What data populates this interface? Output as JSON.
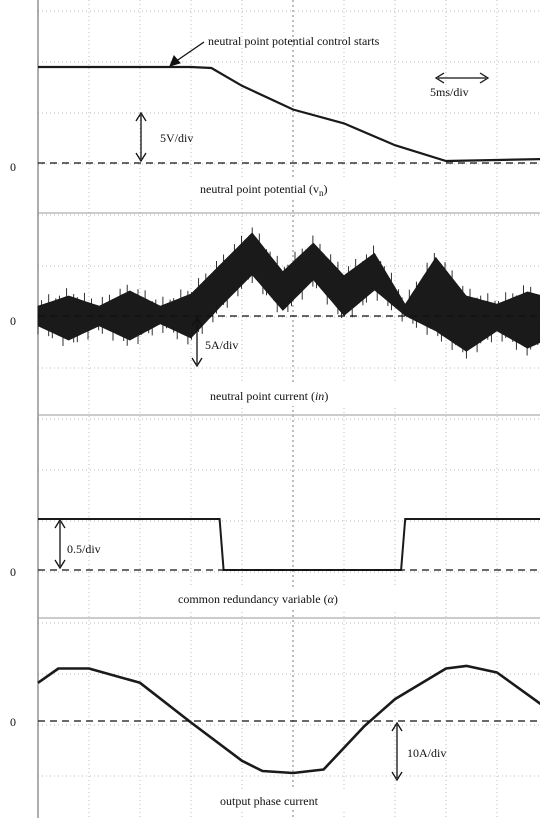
{
  "colors": {
    "trace": "#1a1a1a",
    "grid": "#bdbdbd",
    "background": "#ffffff"
  },
  "annotations": {
    "control_start": "neutral point potential control starts",
    "time_div": "5ms/div"
  },
  "scales": {
    "potential": "5V/div",
    "current": "5A/div",
    "alpha": "0.5/div",
    "phase": "10A/div"
  },
  "zero_label": "0",
  "chart_data": {
    "type": "line",
    "title": "",
    "x_unit": "ms",
    "x_per_division": 5,
    "x_divisions": 10,
    "grid": true,
    "panels": [
      {
        "name": "neutral point potential",
        "subscript": "n",
        "label": "neutral point potential (v",
        "scale": "5V/div",
        "unit": "V",
        "zero_label": "0",
        "series": [
          {
            "x": [
              0,
              5,
              10,
              15,
              17,
              20,
              25,
              30,
              35,
              40,
              45,
              50
            ],
            "y": [
              9.7,
              9.7,
              9.7,
              9.7,
              9.6,
              7.8,
              5.4,
              4.0,
              1.8,
              0.2,
              0.3,
              0.4
            ]
          }
        ]
      },
      {
        "name": "neutral point current",
        "label": "neutral point current (",
        "label_italic": "in",
        "label_end": ")",
        "scale": "5A/div",
        "unit": "A",
        "zero_label": "0",
        "envelope": "upper and lower bounds of the dense switching waveform",
        "series": [
          {
            "name": "upper",
            "x": [
              0,
              3,
              6,
              9,
              12,
              15,
              18,
              21,
              24,
              27,
              30,
              33,
              36,
              39,
              42,
              45,
              48,
              51
            ],
            "y": [
              1.0,
              2.0,
              1.0,
              2.5,
              1.0,
              2.2,
              5.2,
              8.2,
              4.4,
              7.2,
              4.0,
              6.2,
              1.2,
              5.8,
              2.0,
              1.2,
              2.4,
              1.6
            ]
          },
          {
            "name": "lower",
            "x": [
              0,
              3,
              6,
              9,
              12,
              15,
              18,
              21,
              24,
              27,
              30,
              33,
              36,
              39,
              42,
              45,
              48,
              51
            ],
            "y": [
              -1.0,
              -2.4,
              -1.0,
              -2.4,
              -0.8,
              -2.2,
              1.0,
              4.0,
              0.5,
              3.5,
              0.0,
              2.5,
              0.0,
              -1.5,
              -3.5,
              -1.5,
              -3.2,
              -1.8
            ]
          }
        ]
      },
      {
        "name": "common redundancy variable",
        "label": "common redundancy variable (",
        "label_symbol": "α",
        "label_end": ")",
        "scale": "0.5/div",
        "unit": "",
        "zero_label": "0",
        "series": [
          {
            "x": [
              0,
              17.8,
              18.2,
              35.6,
              36.0,
              51
            ],
            "y": [
              0.5,
              0.5,
              0.0,
              0.0,
              0.5,
              0.5
            ]
          }
        ]
      },
      {
        "name": "output phase current",
        "label": "output phase current",
        "scale": "10A/div",
        "unit": "A",
        "zero_label": "0",
        "series": [
          {
            "x": [
              0,
              2,
              5,
              10,
              15,
              20,
              22,
              25,
              28,
              32,
              35,
              40,
              42,
              45,
              50,
              51
            ],
            "y": [
              7.5,
              10.3,
              10.3,
              7.5,
              -0.3,
              -7.8,
              -9.8,
              -10.2,
              -9.5,
              -1.0,
              4.3,
              10.3,
              10.8,
              9.5,
              2.3,
              -3.8
            ]
          }
        ]
      }
    ]
  }
}
